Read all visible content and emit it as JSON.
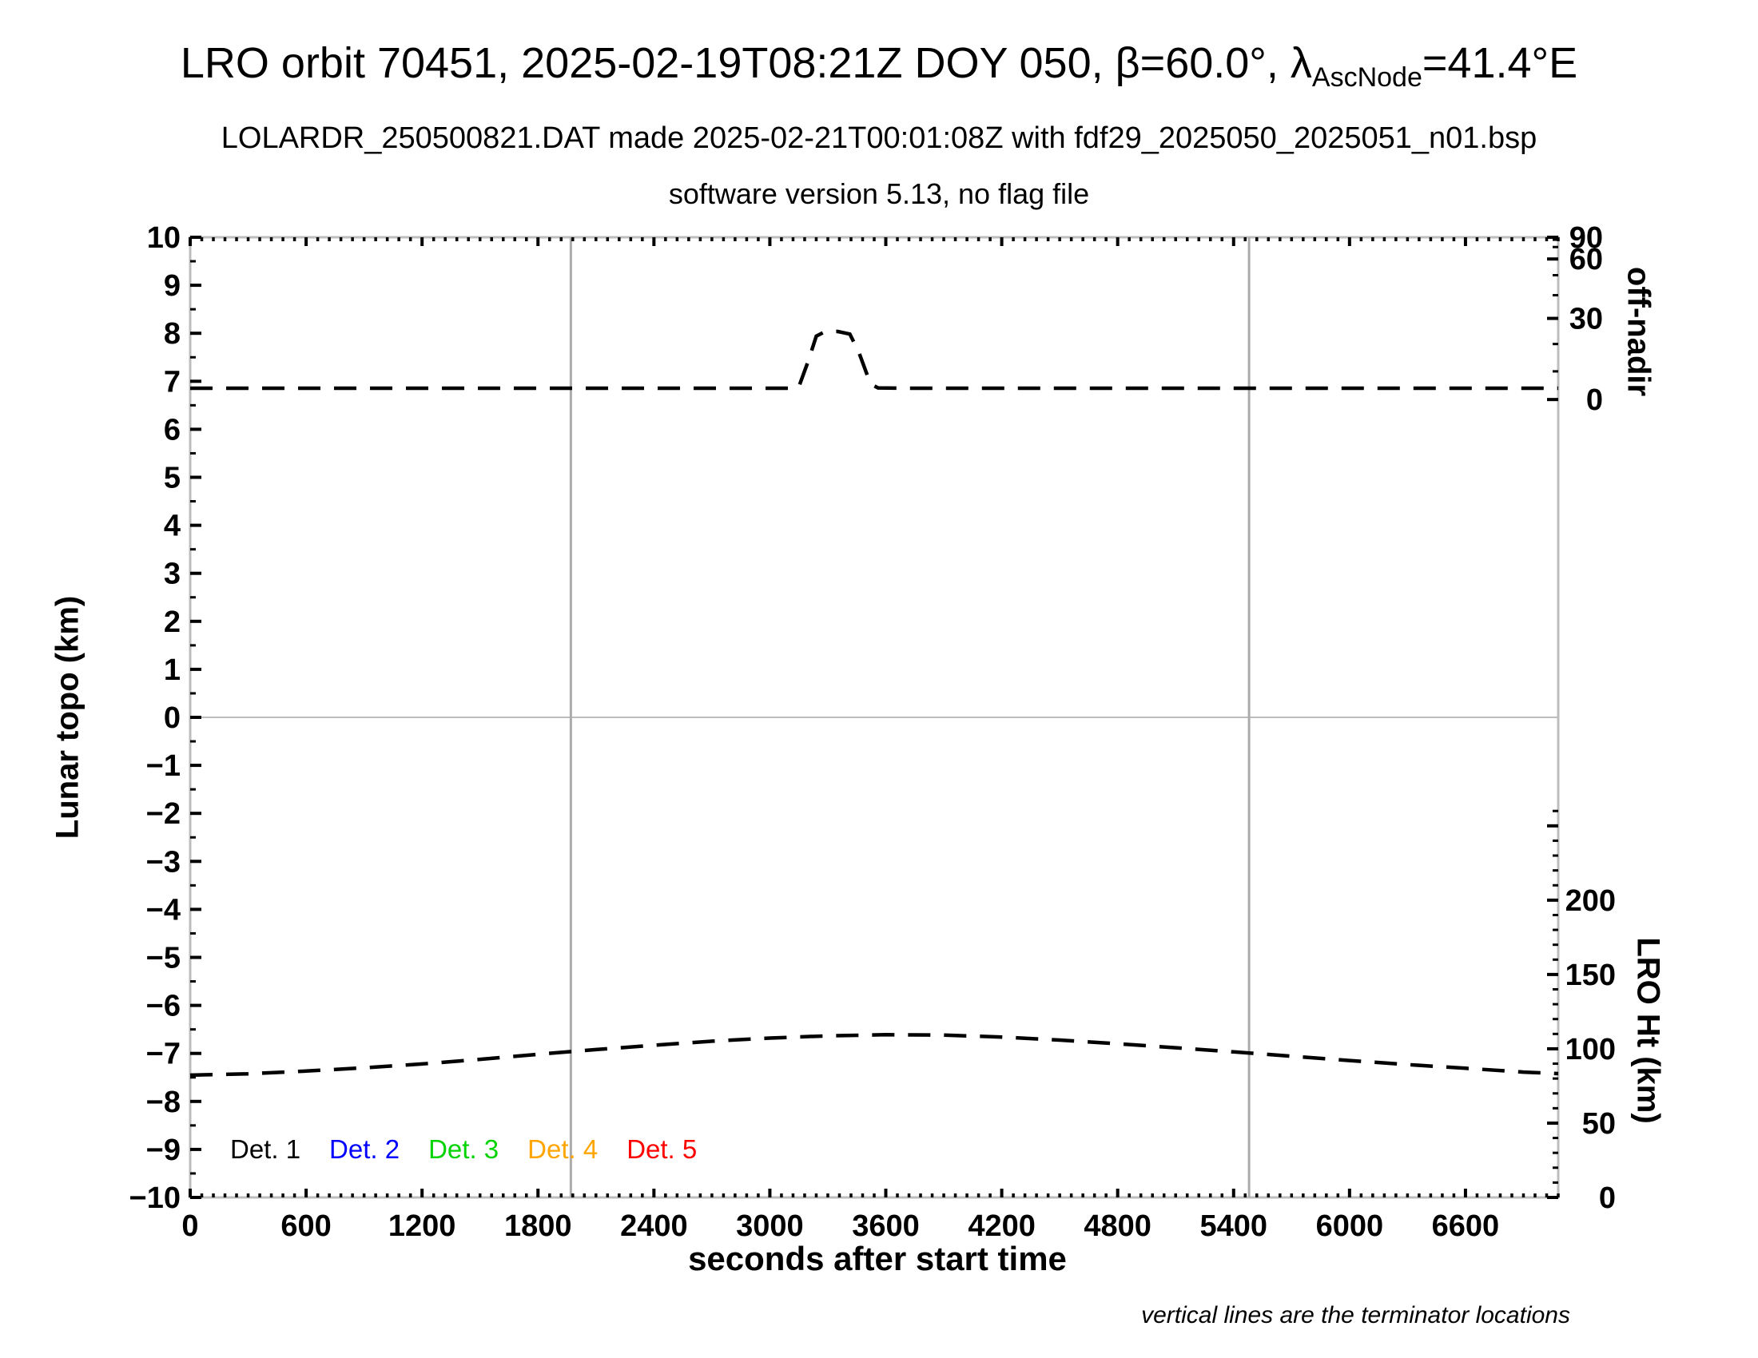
{
  "chart_data": {
    "type": "line",
    "title": {
      "prefix": "LRO orbit 70451, 2025-02-19T08:21Z DOY 050, β=60.0°, λ",
      "subscript": "AscNode",
      "suffix": "=41.4°E"
    },
    "subtitles": [
      "LOLARDR_250500821.DAT made 2025-02-21T00:01:08Z with fdf29_2025050_2025051_n01.bsp",
      "software version 5.13, no flag file"
    ],
    "xlabel": "seconds after start time",
    "ylabel_left": "Lunar topo (km)",
    "x_axis": {
      "range": [
        0,
        7080
      ],
      "major_tick_step": 600,
      "minor_tick_step": 60,
      "major_ticks": [
        0,
        600,
        1200,
        1800,
        2400,
        3000,
        3600,
        4200,
        4800,
        5400,
        6000,
        6600
      ]
    },
    "y_left": {
      "range": [
        -10,
        10
      ],
      "major_tick_step": 1,
      "minor_tick_step": 0.5,
      "zero_gridline": true
    },
    "y_right_top": {
      "label": "off-nadir",
      "scale": "sine",
      "ticks": [
        90,
        60,
        30,
        0
      ],
      "minor_ticks": [
        10,
        20,
        40,
        50,
        70,
        80
      ],
      "zero_at_topo": 6.62,
      "ninety_at_topo": 10.0
    },
    "y_right_bottom": {
      "label": "LRO Ht (km)",
      "labeled_ticks": [
        200,
        150,
        100,
        50,
        0
      ],
      "major_tick_step": 50,
      "minor_tick_step": 10,
      "tick_max": 260,
      "zero_at_topo": -10,
      "km_per_topo_unit": 32.3
    },
    "terminators": {
      "x_values_s": [
        1970,
        5480
      ],
      "note": "vertical lines are the terminator locations"
    },
    "legend": {
      "position": "inside-bottom-left",
      "items": [
        {
          "label": "Det. 1",
          "color": "#000000"
        },
        {
          "label": "Det. 2",
          "color": "#0000ff"
        },
        {
          "label": "Det. 3",
          "color": "#00d300"
        },
        {
          "label": "Det. 4",
          "color": "#ffa500"
        },
        {
          "label": "Det. 5",
          "color": "#ff0000"
        }
      ]
    },
    "colors": {
      "axis_frame": "#bdbdbd",
      "zero_line": "#bdbdbd",
      "terminator_line": "#ababab",
      "series": "#000000"
    },
    "series": [
      {
        "id": "off-nadir-angle",
        "name": "spacecraft off-nadir angle",
        "axis": "right_top",
        "units": "deg",
        "color": "#000000",
        "style": "dashed",
        "points": [
          [
            0,
            4
          ],
          [
            600,
            4
          ],
          [
            1200,
            4
          ],
          [
            1800,
            4
          ],
          [
            2400,
            4
          ],
          [
            3000,
            4
          ],
          [
            3100,
            4
          ],
          [
            3150,
            4.5
          ],
          [
            3200,
            14
          ],
          [
            3240,
            23
          ],
          [
            3280,
            24.5
          ],
          [
            3350,
            24.8
          ],
          [
            3414,
            23.8
          ],
          [
            3460,
            17
          ],
          [
            3505,
            8.5
          ],
          [
            3535,
            5
          ],
          [
            3560,
            4.1
          ],
          [
            3700,
            4
          ],
          [
            4300,
            4
          ],
          [
            4900,
            4
          ],
          [
            5500,
            4
          ],
          [
            6100,
            4
          ],
          [
            6700,
            4
          ],
          [
            7080,
            4
          ]
        ]
      },
      {
        "id": "lro-height",
        "name": "LRO height above surface",
        "axis": "right_bottom",
        "units": "km",
        "color": "#000000",
        "style": "dashed",
        "points": [
          [
            0,
            82.3
          ],
          [
            300,
            83.2
          ],
          [
            600,
            85.0
          ],
          [
            900,
            87.2
          ],
          [
            1200,
            89.8
          ],
          [
            1500,
            92.9
          ],
          [
            1800,
            96.3
          ],
          [
            2100,
            99.5
          ],
          [
            2400,
            102.4
          ],
          [
            2700,
            105.1
          ],
          [
            3000,
            107.2
          ],
          [
            3300,
            108.7
          ],
          [
            3600,
            109.5
          ],
          [
            3900,
            109.2
          ],
          [
            4200,
            107.9
          ],
          [
            4500,
            105.9
          ],
          [
            4800,
            103.4
          ],
          [
            5100,
            100.7
          ],
          [
            5400,
            97.9
          ],
          [
            5700,
            95.0
          ],
          [
            6000,
            92.1
          ],
          [
            6300,
            89.4
          ],
          [
            6600,
            86.9
          ],
          [
            6900,
            84.3
          ],
          [
            7080,
            83.3
          ]
        ]
      }
    ]
  }
}
